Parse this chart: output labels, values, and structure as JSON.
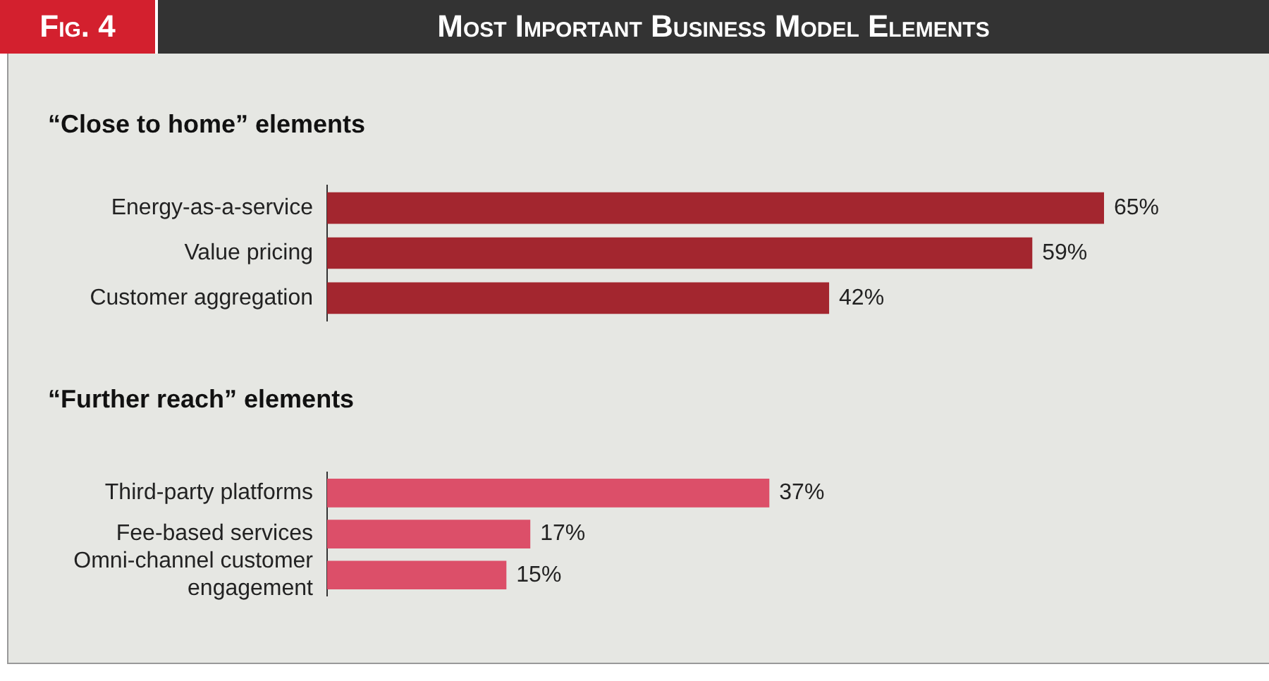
{
  "chart_data": [
    {
      "type": "bar",
      "orientation": "horizontal",
      "title": "Most Important Business Model Elements",
      "subtitle": "“Close to home” elements",
      "annotations": [
        "Fig. 4"
      ],
      "categories": [
        "Energy-as-a-service",
        "Value pricing",
        "Customer aggregation"
      ],
      "values": [
        65,
        59,
        42
      ],
      "value_labels": [
        "65%",
        "59%",
        "42%"
      ],
      "color": "#a3262f",
      "tick_labels": "y",
      "grid": false
    },
    {
      "type": "bar",
      "orientation": "horizontal",
      "subtitle": "“Further reach” elements",
      "categories": [
        "Third-party platforms",
        "Fee-based services",
        "Omni-channel customer engagement"
      ],
      "values": [
        37,
        17,
        15
      ],
      "value_labels": [
        "37%",
        "17%",
        "15%"
      ],
      "color": "#dc4f69",
      "tick_labels": "y",
      "grid": false
    }
  ]
}
